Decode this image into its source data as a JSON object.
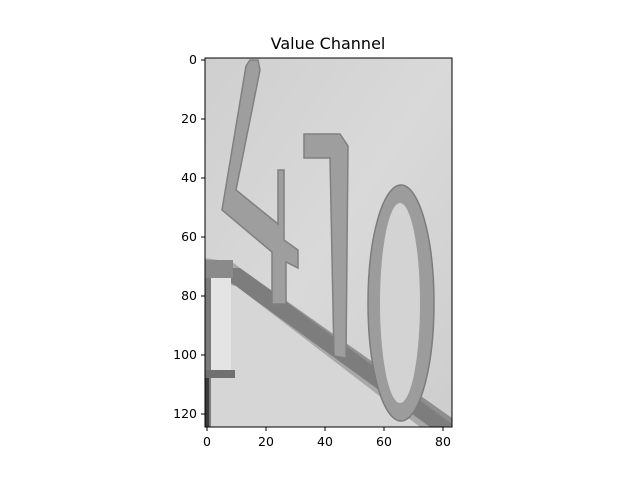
{
  "figure": {
    "title": "Value Channel"
  },
  "image_axes": {
    "x_ticks": [
      "0",
      "20",
      "40",
      "60",
      "80"
    ],
    "y_ticks": [
      "0",
      "20",
      "40",
      "60",
      "80",
      "100",
      "120"
    ]
  },
  "image_content": {
    "depicted": "grayscale-photo-of-house-number-410",
    "colors": {
      "wall": "#d2d2d2",
      "numeral": "#9a9a9a",
      "numeral_edge": "#7a7a7a",
      "trim": "#8a8a8a",
      "shadow": "#4a4a4a"
    }
  }
}
